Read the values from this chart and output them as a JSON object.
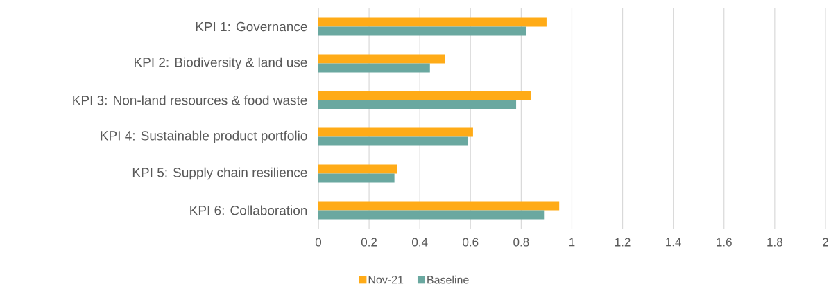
{
  "chart_data": {
    "type": "bar",
    "orientation": "horizontal",
    "categories": [
      "KPI 1: Governance",
      "KPI 2: Biodiversity & land use",
      "KPI 3: Non-land resources & food waste",
      "KPI 4: Sustainable product portfolio",
      "KPI 5: Supply chain resilience",
      "KPI 6: Collaboration"
    ],
    "series": [
      {
        "name": "Nov-21",
        "color": "#ffab17",
        "values": [
          0.9,
          0.5,
          0.84,
          0.61,
          0.31,
          0.95
        ]
      },
      {
        "name": "Baseline",
        "color": "#6aa8a0",
        "values": [
          0.82,
          0.44,
          0.78,
          0.59,
          0.3,
          0.89
        ]
      }
    ],
    "xlim": [
      0,
      2
    ],
    "xticks": [
      0,
      0.2,
      0.4,
      0.6,
      0.8,
      1,
      1.2,
      1.4,
      1.6,
      1.8,
      2
    ],
    "grid": "x",
    "legend": "bottom"
  }
}
